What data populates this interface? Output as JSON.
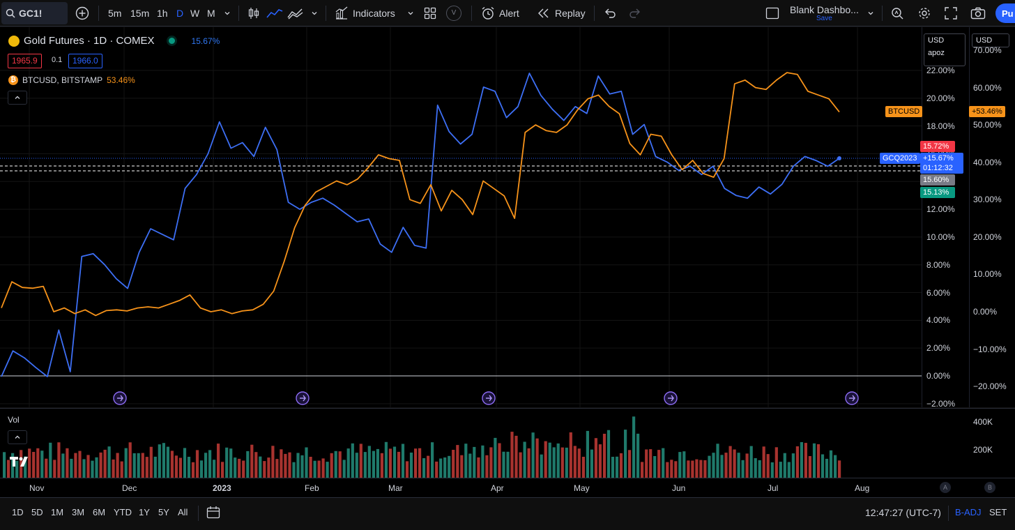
{
  "toolbar": {
    "symbol": "GC1!",
    "timeframes": [
      "5m",
      "15m",
      "1h",
      "D",
      "W",
      "M"
    ],
    "active_timeframe": "D",
    "indicators_label": "Indicators",
    "templates_badge": "V",
    "alert_label": "Alert",
    "replay_label": "Replay",
    "layout_name": "Blank Dashbo...",
    "layout_save": "Save",
    "publish_label": "Pu"
  },
  "legend": {
    "title": "Gold Futures · 1D · COMEX",
    "change": "15.67%",
    "sell_price": "1965.9",
    "spread": "0.1",
    "buy_price": "1966.0",
    "compare_symbol": "BTCUSD, BITSTAMP",
    "compare_change": "53.46%"
  },
  "price_axis": {
    "currency": "USD",
    "scale_mode": "apoz",
    "left_labels": [
      "22.00%",
      "20.00%",
      "18.00%",
      "16.00%",
      "14.00%",
      "12.00%",
      "10.00%",
      "8.00%",
      "6.00%",
      "4.00%",
      "2.00%",
      "0.00%",
      "−2.00%"
    ],
    "right_currency": "USD",
    "right_labels": [
      "70.00%",
      "60.00%",
      "50.00%",
      "40.00%",
      "30.00%",
      "20.00%",
      "10.00%",
      "0.00%",
      "−10.00%",
      "−20.00%"
    ]
  },
  "tags": {
    "btc_name": "BTCUSD",
    "btc_value": "+53.46%",
    "gc_name": "GCQ2023",
    "gc_value": "+15.67%",
    "countdown": "01:12:32",
    "high": "15.72%",
    "mid": "15.60%",
    "low": "15.13%"
  },
  "volume": {
    "label": "Vol",
    "axis_labels": [
      "400K",
      "200K"
    ]
  },
  "time_axis": {
    "labels": [
      "Nov",
      "Dec",
      "2023",
      "Feb",
      "Mar",
      "Apr",
      "May",
      "Jun",
      "Jul",
      "Aug"
    ],
    "badge_a": "A",
    "badge_b": "B"
  },
  "bottombar": {
    "ranges": [
      "1D",
      "5D",
      "1M",
      "3M",
      "6M",
      "YTD",
      "1Y",
      "5Y",
      "All"
    ],
    "clock": "12:47:27 (UTC-7)",
    "badj": "B-ADJ",
    "session": "SET"
  },
  "colors": {
    "gold_series": "#3d6ff5",
    "btc_series": "#f7931a",
    "up_volume": "#1f7a6b",
    "down_volume": "#a8332f",
    "accent": "#2962ff"
  },
  "chart_data": {
    "type": "line",
    "x_range": [
      "2022-10-20",
      "2023-07-24"
    ],
    "series": [
      {
        "name": "GCQ2023",
        "axis": "left (percent change)",
        "values": [
          -0.05,
          1.8,
          1.3,
          0.6,
          -0.05,
          3.3,
          0.3,
          8.6,
          8.8,
          8.0,
          7.0,
          6.3,
          8.9,
          10.6,
          10.2,
          9.8,
          13.5,
          14.5,
          16.0,
          18.3,
          16.4,
          16.8,
          15.8,
          17.9,
          16.3,
          12.5,
          12.0,
          12.5,
          12.8,
          12.3,
          11.7,
          11.1,
          11.3,
          9.5,
          8.9,
          10.7,
          9.4,
          9.2,
          19.5,
          17.6,
          16.7,
          17.4,
          20.8,
          20.5,
          18.6,
          19.4,
          21.8,
          20.2,
          19.2,
          18.4,
          19.4,
          18.9,
          21.6,
          20.3,
          20.5,
          17.4,
          18.1,
          15.8,
          15.4,
          14.8,
          15.1,
          14.5,
          15.1,
          13.5,
          13.0,
          12.8,
          13.6,
          13.1,
          13.8,
          15.1,
          15.8,
          15.5,
          15.1,
          15.67
        ]
      },
      {
        "name": "BTCUSD",
        "axis": "right (percent change)",
        "values": [
          1.0,
          8.0,
          6.5,
          6.3,
          6.8,
          0.0,
          1.0,
          -0.5,
          0.5,
          -1.0,
          0.3,
          0.5,
          0.2,
          1.0,
          1.3,
          1.0,
          2.0,
          3.0,
          4.5,
          1.0,
          0.0,
          0.5,
          -0.5,
          0.2,
          0.5,
          2.0,
          5.5,
          13.5,
          22.5,
          28.5,
          32.0,
          33.5,
          35.0,
          34.0,
          35.5,
          38.5,
          42.0,
          41.0,
          40.5,
          30.0,
          29.0,
          34.0,
          27.0,
          32.5,
          30.0,
          26.0,
          35.0,
          33.0,
          31.0,
          25.0,
          48.0,
          50.0,
          48.5,
          48.0,
          50.0,
          54.0,
          57.0,
          58.0,
          55.0,
          53.0,
          45.0,
          42.0,
          47.5,
          47.0,
          42.0,
          38.0,
          40.5,
          37.0,
          36.0,
          41.0,
          61.0,
          62.0,
          60.0,
          59.5,
          62.0,
          64.0,
          63.5,
          59.0,
          58.0,
          57.0,
          53.46
        ]
      }
    ],
    "left_ylim": [
      -2,
      22
    ],
    "right_ylim": [
      -20,
      70
    ],
    "xlabel": "",
    "ylabel": "",
    "grid": true,
    "legend": "top-left"
  }
}
